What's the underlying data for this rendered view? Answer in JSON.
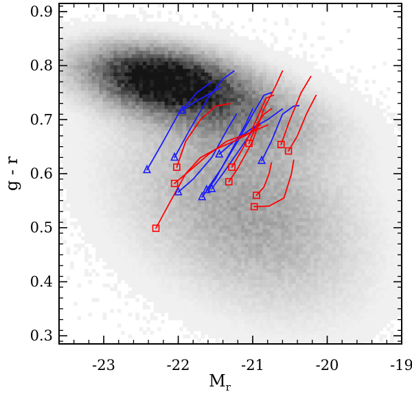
{
  "chart_data": {
    "type": "scatter",
    "xlabel": "M",
    "xlabel_sub": "r",
    "ylabel": "g - r",
    "xlim": [
      -23.6,
      -19.0
    ],
    "ylim": [
      0.285,
      0.915
    ],
    "xticks": [
      -23,
      -22,
      -21,
      -20,
      -19
    ],
    "xtick_labels": [
      "-23",
      "-22",
      "-21",
      "-20",
      "-19"
    ],
    "yticks": [
      0.3,
      0.4,
      0.5,
      0.6,
      0.7,
      0.8,
      0.9
    ],
    "ytick_labels": [
      "0.3",
      "0.4",
      "0.5",
      "0.6",
      "0.7",
      "0.8",
      "0.9"
    ],
    "grid": false,
    "colors": {
      "blue": "#1a1aff",
      "red": "#ff0000",
      "density": "#000000"
    },
    "density_components": [
      {
        "mx": -22.2,
        "my": 0.775,
        "sx": 0.6,
        "sy": 0.035,
        "rho": -0.3,
        "w": 1.0
      },
      {
        "mx": -21.6,
        "my": 0.73,
        "sx": 0.9,
        "sy": 0.05,
        "rho": -0.5,
        "w": 0.35
      },
      {
        "mx": -21.3,
        "my": 0.57,
        "sx": 0.95,
        "sy": 0.11,
        "rho": -0.2,
        "w": 0.2
      },
      {
        "mx": -20.7,
        "my": 0.48,
        "sx": 0.8,
        "sy": 0.1,
        "rho": -0.3,
        "w": 0.1
      }
    ],
    "series": [
      {
        "color": "blue",
        "marker": "triangle",
        "tracks": [
          [
            [
              -22.42,
              0.607
            ],
            [
              -22.2,
              0.66
            ],
            [
              -22.0,
              0.71
            ],
            [
              -21.75,
              0.75
            ],
            [
              -21.55,
              0.77
            ]
          ],
          [
            [
              -22.05,
              0.63
            ],
            [
              -21.85,
              0.68
            ],
            [
              -21.6,
              0.74
            ],
            [
              -21.4,
              0.775
            ],
            [
              -21.25,
              0.79
            ]
          ],
          [
            [
              -21.95,
              0.717
            ],
            [
              -21.75,
              0.735
            ],
            [
              -21.55,
              0.75
            ],
            [
              -21.42,
              0.76
            ]
          ],
          [
            [
              -22.0,
              0.566
            ],
            [
              -21.8,
              0.59
            ],
            [
              -21.55,
              0.63
            ],
            [
              -21.35,
              0.68
            ],
            [
              -21.22,
              0.71
            ]
          ],
          [
            [
              -21.68,
              0.557
            ],
            [
              -21.5,
              0.59
            ],
            [
              -21.3,
              0.64
            ],
            [
              -21.1,
              0.69
            ],
            [
              -21.0,
              0.72
            ]
          ],
          [
            [
              -21.62,
              0.57
            ],
            [
              -21.42,
              0.61
            ],
            [
              -21.2,
              0.66
            ],
            [
              -21.0,
              0.71
            ],
            [
              -20.85,
              0.745
            ],
            [
              -20.75,
              0.75
            ]
          ],
          [
            [
              -21.55,
              0.572
            ],
            [
              -21.35,
              0.61
            ],
            [
              -21.1,
              0.66
            ],
            [
              -20.9,
              0.7
            ]
          ],
          [
            [
              -21.45,
              0.636
            ],
            [
              -21.25,
              0.66
            ],
            [
              -21.0,
              0.685
            ],
            [
              -20.8,
              0.7
            ],
            [
              -20.6,
              0.72
            ]
          ],
          [
            [
              -20.88,
              0.624
            ],
            [
              -20.75,
              0.66
            ],
            [
              -20.6,
              0.71
            ],
            [
              -20.45,
              0.725
            ],
            [
              -20.38,
              0.726
            ]
          ]
        ]
      },
      {
        "color": "red",
        "marker": "square",
        "tracks": [
          [
            [
              -22.3,
              0.499
            ],
            [
              -22.1,
              0.55
            ],
            [
              -21.9,
              0.6
            ],
            [
              -21.7,
              0.63
            ],
            [
              -21.5,
              0.645
            ],
            [
              -21.25,
              0.66
            ],
            [
              -21.08,
              0.672
            ],
            [
              -20.9,
              0.69
            ]
          ],
          [
            [
              -22.05,
              0.582
            ],
            [
              -21.85,
              0.605
            ],
            [
              -21.6,
              0.635
            ],
            [
              -21.35,
              0.66
            ],
            [
              -21.05,
              0.675
            ],
            [
              -20.8,
              0.69
            ]
          ],
          [
            [
              -22.02,
              0.612
            ],
            [
              -21.9,
              0.66
            ],
            [
              -21.7,
              0.7
            ],
            [
              -21.5,
              0.725
            ],
            [
              -21.3,
              0.73
            ]
          ],
          [
            [
              -21.32,
              0.585
            ],
            [
              -21.2,
              0.61
            ],
            [
              -21.0,
              0.66
            ],
            [
              -20.85,
              0.72
            ],
            [
              -20.7,
              0.76
            ],
            [
              -20.6,
              0.79
            ]
          ],
          [
            [
              -21.28,
              0.612
            ],
            [
              -21.12,
              0.65
            ],
            [
              -20.95,
              0.7
            ],
            [
              -20.82,
              0.74
            ],
            [
              -20.72,
              0.745
            ]
          ],
          [
            [
              -21.05,
              0.656
            ],
            [
              -20.95,
              0.69
            ],
            [
              -20.85,
              0.71
            ],
            [
              -20.75,
              0.72
            ]
          ],
          [
            [
              -20.95,
              0.56
            ],
            [
              -20.85,
              0.575
            ],
            [
              -20.78,
              0.6
            ],
            [
              -20.75,
              0.62
            ]
          ],
          [
            [
              -20.98,
              0.539
            ],
            [
              -20.78,
              0.54
            ],
            [
              -20.58,
              0.555
            ],
            [
              -20.48,
              0.6
            ],
            [
              -20.45,
              0.625
            ]
          ],
          [
            [
              -20.62,
              0.654
            ],
            [
              -20.5,
              0.7
            ],
            [
              -20.35,
              0.75
            ],
            [
              -20.22,
              0.78
            ]
          ],
          [
            [
              -20.52,
              0.642
            ],
            [
              -20.4,
              0.67
            ],
            [
              -20.28,
              0.71
            ],
            [
              -20.15,
              0.745
            ]
          ]
        ]
      }
    ]
  }
}
